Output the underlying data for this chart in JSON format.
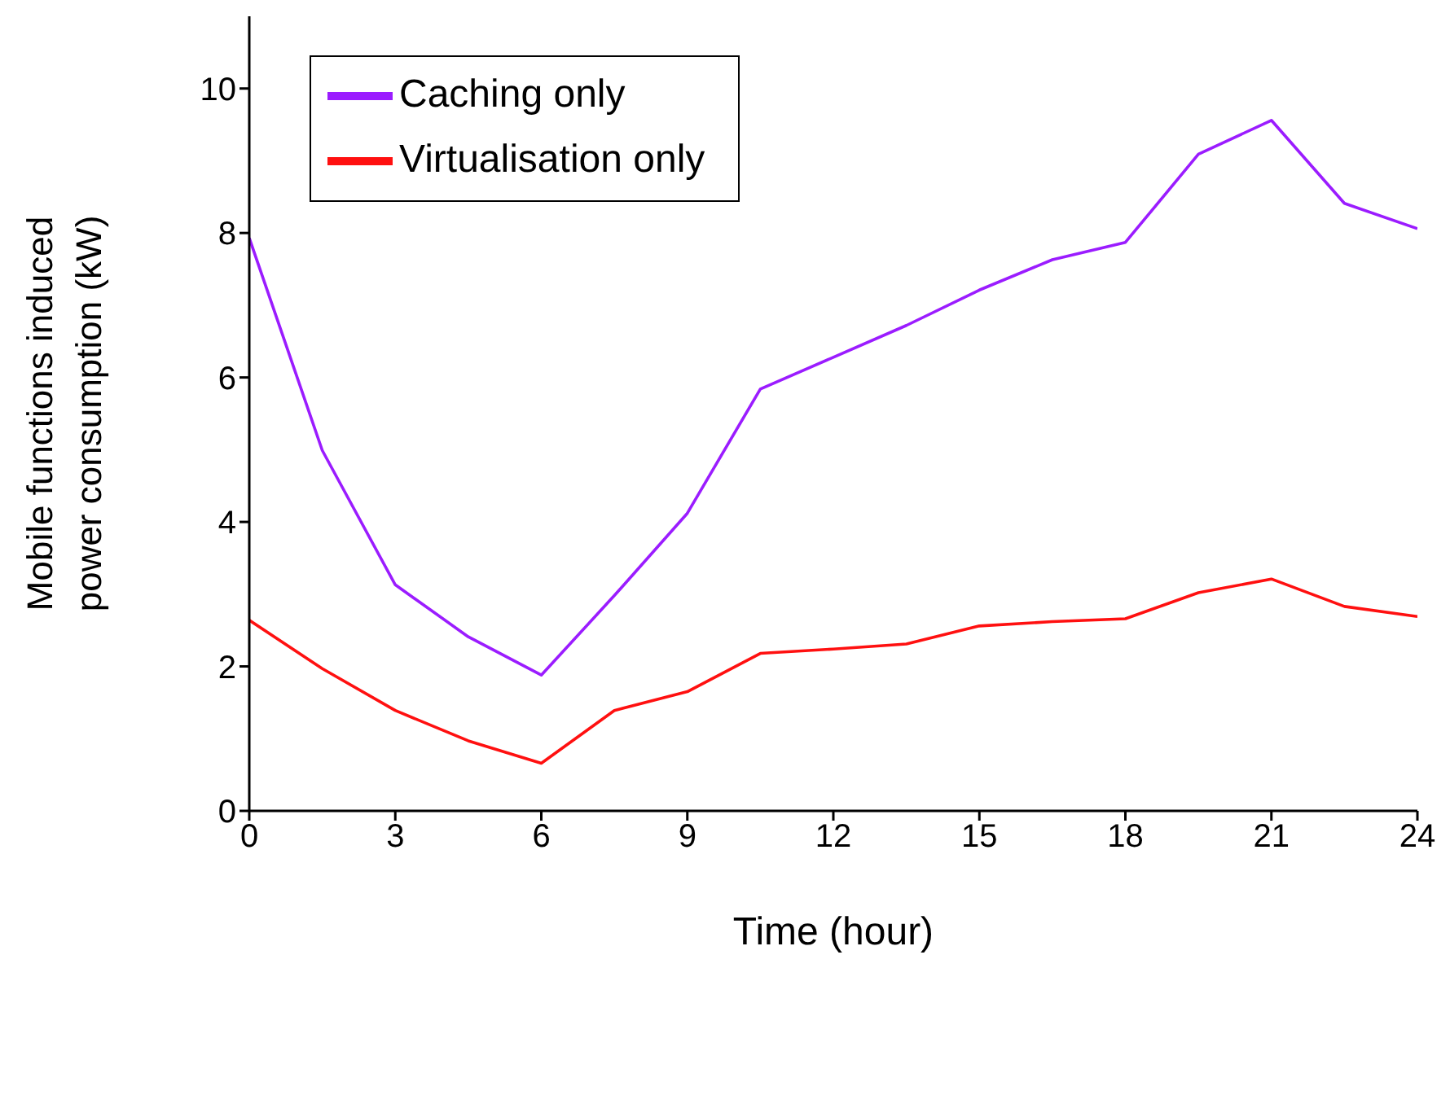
{
  "chart_data": {
    "type": "line",
    "xlabel": "Time (hour)",
    "ylabel": "Mobile functions induced power consumption (kW)",
    "x": [
      0,
      1.5,
      3,
      4.5,
      6,
      7.5,
      9,
      10.5,
      12,
      13.5,
      15,
      16.5,
      18,
      19.5,
      21,
      22.5,
      24
    ],
    "series": [
      {
        "name": "Caching only",
        "color": "#9b1cff",
        "values": [
          7.93,
          4.99,
          3.13,
          2.41,
          1.88,
          2.98,
          4.12,
          5.84,
          6.28,
          6.72,
          7.21,
          7.63,
          7.87,
          9.09,
          9.56,
          8.41,
          8.06
        ]
      },
      {
        "name": "Virtualisation only",
        "color": "#ff1010",
        "values": [
          2.64,
          1.97,
          1.39,
          0.97,
          0.66,
          1.39,
          1.65,
          2.18,
          2.24,
          2.31,
          2.56,
          2.62,
          2.66,
          3.02,
          3.21,
          2.83,
          2.69
        ]
      }
    ],
    "xlim": [
      0,
      24
    ],
    "xticks": [
      0,
      3,
      6,
      9,
      12,
      15,
      18,
      21,
      24
    ],
    "ylim": [
      0,
      11
    ],
    "yticks": [
      0,
      2,
      4,
      6,
      8,
      10
    ],
    "grid": false,
    "legend": "top left",
    "marker": "none",
    "line_style": "solid"
  }
}
